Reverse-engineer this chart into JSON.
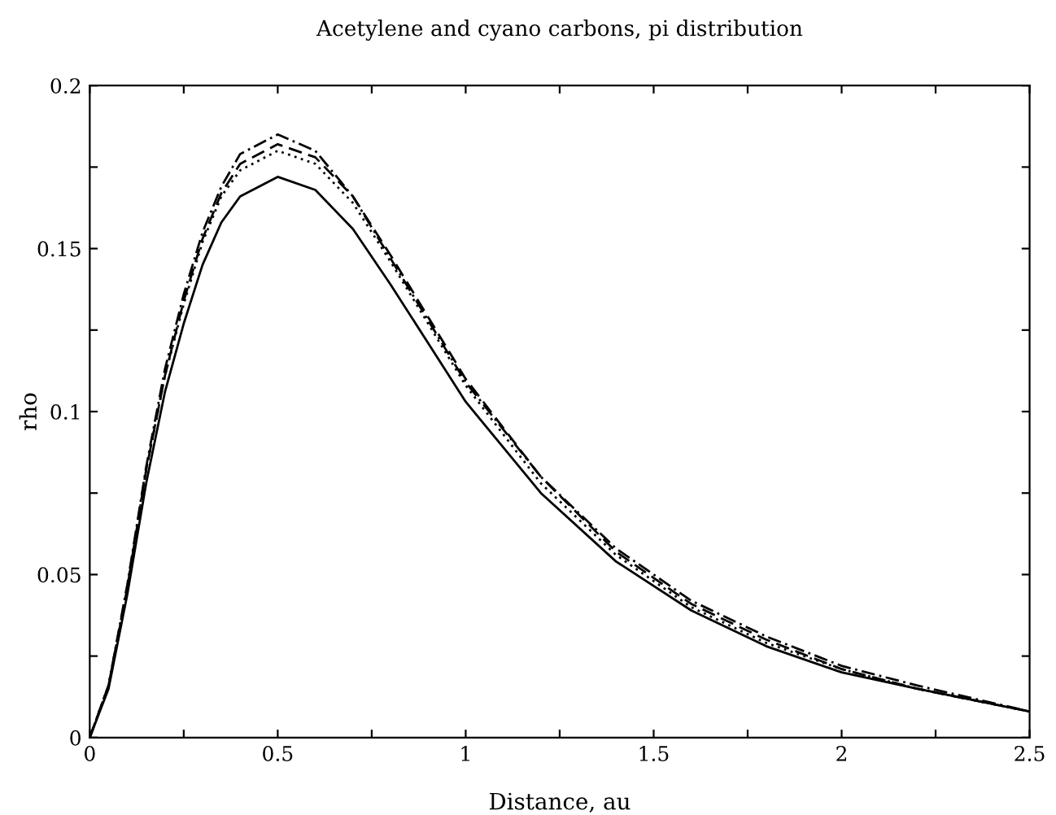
{
  "chart_data": {
    "type": "line",
    "title": "Acetylene and cyano carbons, pi distribution",
    "xlabel": "Distance, au",
    "ylabel": "rho",
    "x": [
      0,
      0.05,
      0.1,
      0.15,
      0.2,
      0.25,
      0.3,
      0.35,
      0.4,
      0.5,
      0.6,
      0.7,
      0.8,
      0.9,
      1.0,
      1.2,
      1.4,
      1.6,
      1.8,
      2.0,
      2.2,
      2.5
    ],
    "series": [
      {
        "color": "#000000",
        "line_style": "solid",
        "values": [
          0,
          0.015,
          0.044,
          0.078,
          0.106,
          0.127,
          0.145,
          0.158,
          0.166,
          0.172,
          0.168,
          0.156,
          0.139,
          0.121,
          0.103,
          0.075,
          0.054,
          0.039,
          0.028,
          0.02,
          0.015,
          0.008
        ]
      },
      {
        "color": "#000000",
        "line_style": "dotted",
        "values": [
          0,
          0.016,
          0.046,
          0.082,
          0.111,
          0.133,
          0.152,
          0.166,
          0.174,
          0.18,
          0.176,
          0.164,
          0.146,
          0.127,
          0.108,
          0.078,
          0.056,
          0.04,
          0.029,
          0.021,
          0.015,
          0.008
        ]
      },
      {
        "color": "#000000",
        "line_style": "dashed",
        "values": [
          0,
          0.016,
          0.046,
          0.082,
          0.111,
          0.134,
          0.153,
          0.167,
          0.176,
          0.182,
          0.178,
          0.166,
          0.148,
          0.129,
          0.11,
          0.08,
          0.057,
          0.041,
          0.03,
          0.021,
          0.015,
          0.008
        ]
      },
      {
        "color": "#000000",
        "line_style": "dashdot",
        "values": [
          0,
          0.016,
          0.047,
          0.083,
          0.113,
          0.136,
          0.155,
          0.169,
          0.179,
          0.185,
          0.18,
          0.166,
          0.147,
          0.128,
          0.109,
          0.08,
          0.058,
          0.042,
          0.031,
          0.022,
          0.016,
          0.008
        ]
      }
    ],
    "xlim": [
      0,
      2.5
    ],
    "ylim": [
      0,
      0.2
    ],
    "xticks": [
      0,
      {
        "value": 0.25,
        "label": null
      },
      0.5,
      {
        "value": 0.75,
        "label": null
      },
      1,
      {
        "value": 1.25,
        "label": null
      },
      1.5,
      {
        "value": 1.75,
        "label": null
      },
      2,
      {
        "value": 2.25,
        "label": null
      },
      2.5
    ],
    "yticks": [
      0,
      {
        "value": 0.025,
        "label": null
      },
      0.05,
      {
        "value": 0.075,
        "label": null
      },
      0.1,
      {
        "value": 0.125,
        "label": null
      },
      0.15,
      {
        "value": 0.175,
        "label": null
      },
      0.2
    ],
    "grid": false,
    "marker": "none"
  }
}
